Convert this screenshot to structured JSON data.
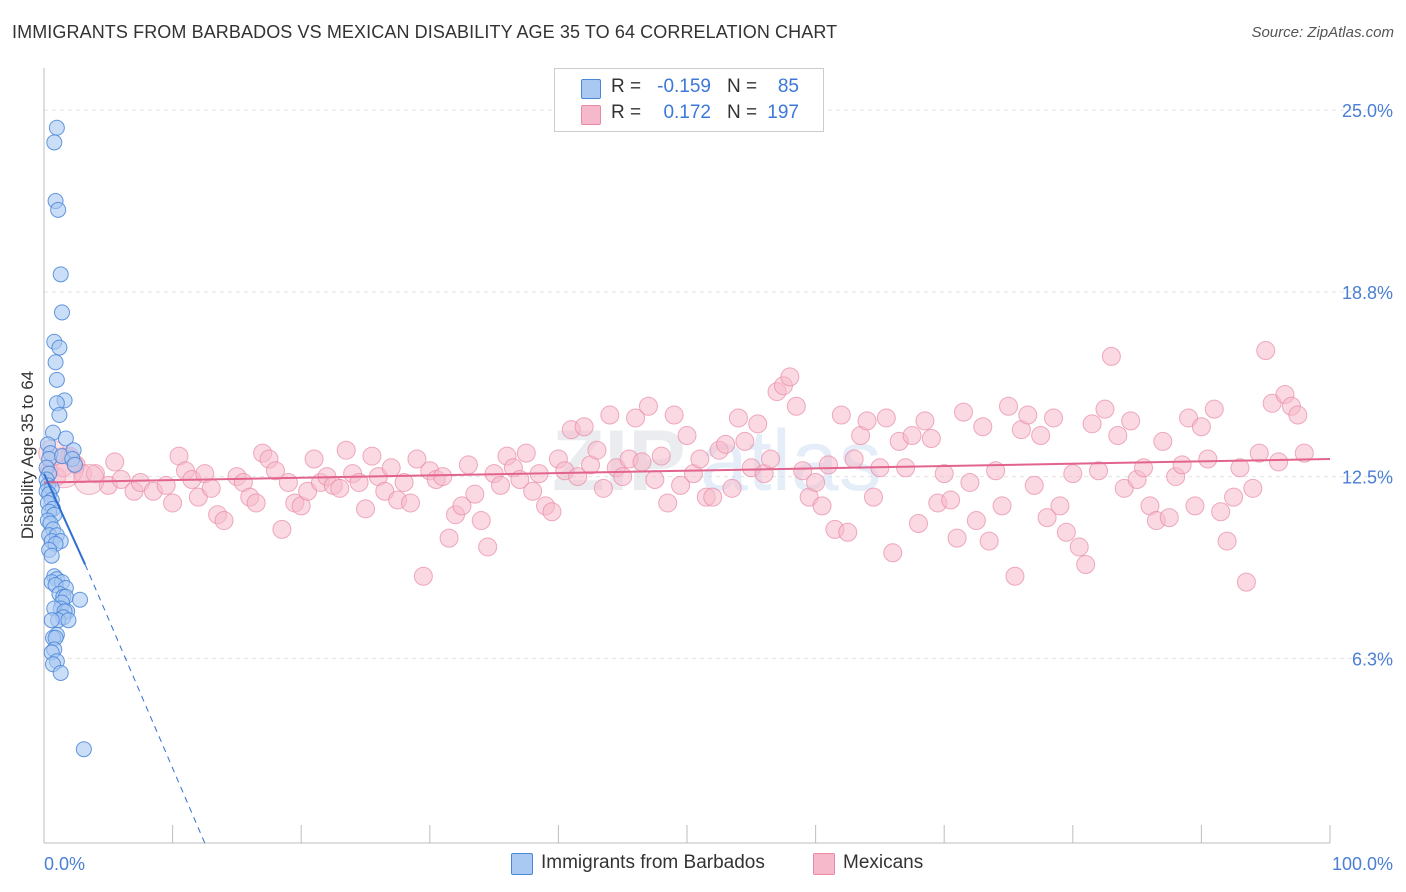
{
  "title": "IMMIGRANTS FROM BARBADOS VS MEXICAN DISABILITY AGE 35 TO 64 CORRELATION CHART",
  "source": "Source: ZipAtlas.com",
  "watermark": {
    "zip": "ZIP",
    "atlas": "atlas"
  },
  "legend": {
    "rows": [
      {
        "r_label": "R =",
        "r_value": "-0.159",
        "n_label": "N =",
        "n_value": "85"
      },
      {
        "r_label": "R =",
        "r_value": "0.172",
        "n_label": "N =",
        "n_value": "197"
      }
    ]
  },
  "bottom_legend": [
    {
      "label": "Immigrants from Barbados"
    },
    {
      "label": "Mexicans"
    }
  ],
  "colors": {
    "barbados_fill": "#a9c8f2",
    "barbados_stroke": "#4a86d8",
    "barbados_line": "#2f6fd0",
    "mexicans_fill": "#f6b9cb",
    "mexicans_stroke": "#e889a6",
    "mexicans_line": "#e2648d",
    "tick_text": "#4a7fd4",
    "grid": "#e3e3e3"
  },
  "chart_data": {
    "type": "scatter",
    "title": "IMMIGRANTS FROM BARBADOS VS MEXICAN DISABILITY AGE 35 TO 64 CORRELATION CHART",
    "xlabel": "",
    "ylabel": "Disability Age 35 to 64",
    "xlim": [
      0,
      100
    ],
    "ylim": [
      0,
      26.2
    ],
    "x_tick_labels": [
      "0.0%",
      "100.0%"
    ],
    "y_ticks": [
      6.3,
      12.5,
      18.8,
      25.0
    ],
    "y_tick_labels": [
      "6.3%",
      "12.5%",
      "18.8%",
      "25.0%"
    ],
    "grid": true,
    "legend_position": "top-center",
    "series": [
      {
        "name": "Immigrants from Barbados",
        "R": -0.159,
        "N": 85,
        "trend": {
          "x0": 0.0,
          "y0": 12.6,
          "x1": 3.2,
          "y1": 9.5,
          "dashed_to_x": 12.5,
          "dashed_to_y": 0
        },
        "points": [
          [
            1.0,
            24.4
          ],
          [
            0.8,
            23.9
          ],
          [
            0.9,
            21.9
          ],
          [
            1.1,
            21.6
          ],
          [
            1.3,
            19.4
          ],
          [
            1.4,
            18.1
          ],
          [
            0.8,
            17.1
          ],
          [
            1.2,
            16.9
          ],
          [
            0.9,
            16.4
          ],
          [
            1.0,
            15.8
          ],
          [
            1.6,
            15.1
          ],
          [
            1.0,
            15.0
          ],
          [
            1.2,
            14.6
          ],
          [
            0.7,
            14.0
          ],
          [
            1.7,
            13.8
          ],
          [
            0.3,
            13.6
          ],
          [
            0.5,
            13.3
          ],
          [
            0.4,
            13.1
          ],
          [
            1.4,
            13.2
          ],
          [
            2.3,
            13.4
          ],
          [
            2.2,
            13.1
          ],
          [
            2.4,
            12.9
          ],
          [
            0.2,
            12.8
          ],
          [
            0.4,
            12.6
          ],
          [
            0.2,
            12.4
          ],
          [
            0.3,
            12.2
          ],
          [
            0.6,
            12.1
          ],
          [
            0.2,
            12.0
          ],
          [
            0.4,
            11.9
          ],
          [
            0.6,
            11.7
          ],
          [
            0.3,
            11.6
          ],
          [
            0.7,
            11.4
          ],
          [
            0.4,
            11.3
          ],
          [
            0.8,
            11.2
          ],
          [
            0.3,
            11.0
          ],
          [
            0.5,
            10.9
          ],
          [
            0.7,
            10.7
          ],
          [
            0.4,
            10.5
          ],
          [
            1.0,
            10.5
          ],
          [
            0.6,
            10.3
          ],
          [
            1.3,
            10.3
          ],
          [
            0.9,
            10.2
          ],
          [
            0.4,
            10.0
          ],
          [
            0.6,
            9.8
          ],
          [
            0.8,
            9.1
          ],
          [
            1.0,
            9.0
          ],
          [
            0.6,
            8.9
          ],
          [
            1.4,
            8.9
          ],
          [
            0.9,
            8.8
          ],
          [
            1.7,
            8.7
          ],
          [
            1.2,
            8.5
          ],
          [
            1.5,
            8.4
          ],
          [
            1.7,
            8.4
          ],
          [
            2.8,
            8.3
          ],
          [
            1.4,
            8.2
          ],
          [
            1.3,
            8.0
          ],
          [
            0.8,
            8.0
          ],
          [
            1.8,
            7.9
          ],
          [
            1.6,
            7.9
          ],
          [
            1.5,
            7.7
          ],
          [
            1.1,
            7.6
          ],
          [
            1.9,
            7.6
          ],
          [
            0.6,
            7.6
          ],
          [
            1.0,
            7.1
          ],
          [
            0.7,
            7.0
          ],
          [
            0.9,
            7.0
          ],
          [
            0.8,
            6.6
          ],
          [
            0.6,
            6.5
          ],
          [
            1.0,
            6.2
          ],
          [
            0.7,
            6.1
          ],
          [
            1.3,
            5.8
          ],
          [
            3.1,
            3.2
          ]
        ]
      },
      {
        "name": "Mexicans",
        "R": 0.172,
        "N": 197,
        "trend": {
          "x0": 0.0,
          "y0": 12.3,
          "x1": 100.0,
          "y1": 13.1
        },
        "points": [
          [
            0.4,
            12.7
          ],
          [
            1.0,
            12.5
          ],
          [
            1.5,
            12.8
          ],
          [
            2.0,
            13.2
          ],
          [
            2.5,
            12.9
          ],
          [
            3.0,
            12.6
          ],
          [
            4.0,
            12.6
          ],
          [
            5.0,
            12.2
          ],
          [
            5.5,
            13.0
          ],
          [
            6.0,
            12.4
          ],
          [
            7.0,
            12.0
          ],
          [
            7.5,
            12.3
          ],
          [
            8.5,
            12.0
          ],
          [
            9.5,
            12.2
          ],
          [
            10.0,
            11.6
          ],
          [
            10.5,
            13.2
          ],
          [
            11.0,
            12.7
          ],
          [
            11.5,
            12.4
          ],
          [
            12.0,
            11.8
          ],
          [
            12.5,
            12.6
          ],
          [
            13.0,
            12.1
          ],
          [
            13.5,
            11.2
          ],
          [
            14.0,
            11.0
          ],
          [
            15.0,
            12.5
          ],
          [
            15.5,
            12.3
          ],
          [
            16.0,
            11.8
          ],
          [
            16.5,
            11.6
          ],
          [
            17.0,
            13.3
          ],
          [
            17.5,
            13.1
          ],
          [
            18.0,
            12.7
          ],
          [
            18.5,
            10.7
          ],
          [
            19.0,
            12.3
          ],
          [
            19.5,
            11.6
          ],
          [
            20.0,
            11.5
          ],
          [
            20.5,
            12.0
          ],
          [
            21.0,
            13.1
          ],
          [
            21.5,
            12.3
          ],
          [
            22.0,
            12.5
          ],
          [
            22.5,
            12.2
          ],
          [
            23.0,
            12.1
          ],
          [
            23.5,
            13.4
          ],
          [
            24.0,
            12.6
          ],
          [
            24.5,
            12.3
          ],
          [
            25.0,
            11.4
          ],
          [
            25.5,
            13.2
          ],
          [
            26.0,
            12.5
          ],
          [
            26.5,
            12.0
          ],
          [
            27.0,
            12.8
          ],
          [
            27.5,
            11.7
          ],
          [
            28.0,
            12.3
          ],
          [
            28.5,
            11.6
          ],
          [
            29.0,
            13.1
          ],
          [
            29.5,
            9.1
          ],
          [
            30.0,
            12.7
          ],
          [
            30.5,
            12.4
          ],
          [
            31.0,
            12.5
          ],
          [
            31.5,
            10.4
          ],
          [
            32.0,
            11.2
          ],
          [
            32.5,
            11.5
          ],
          [
            33.0,
            12.9
          ],
          [
            33.5,
            11.9
          ],
          [
            34.0,
            11.0
          ],
          [
            34.5,
            10.1
          ],
          [
            35.0,
            12.6
          ],
          [
            35.5,
            12.2
          ],
          [
            36.0,
            13.2
          ],
          [
            36.5,
            12.8
          ],
          [
            37.0,
            12.4
          ],
          [
            37.5,
            13.3
          ],
          [
            38.0,
            12.0
          ],
          [
            38.5,
            12.6
          ],
          [
            39.0,
            11.5
          ],
          [
            39.5,
            11.3
          ],
          [
            40.0,
            13.1
          ],
          [
            40.5,
            12.7
          ],
          [
            41.0,
            14.1
          ],
          [
            41.5,
            12.5
          ],
          [
            42.0,
            14.2
          ],
          [
            42.5,
            12.9
          ],
          [
            43.0,
            13.4
          ],
          [
            43.5,
            12.1
          ],
          [
            44.0,
            14.6
          ],
          [
            44.5,
            12.8
          ],
          [
            45.0,
            12.5
          ],
          [
            45.5,
            13.1
          ],
          [
            46.0,
            14.5
          ],
          [
            46.5,
            13.0
          ],
          [
            47.0,
            14.9
          ],
          [
            47.5,
            12.4
          ],
          [
            48.0,
            13.2
          ],
          [
            48.5,
            11.6
          ],
          [
            49.0,
            14.6
          ],
          [
            49.5,
            12.2
          ],
          [
            50.0,
            13.9
          ],
          [
            50.5,
            12.6
          ],
          [
            51.0,
            13.1
          ],
          [
            51.5,
            11.8
          ],
          [
            52.0,
            11.8
          ],
          [
            52.5,
            13.4
          ],
          [
            53.0,
            13.6
          ],
          [
            53.5,
            12.1
          ],
          [
            54.0,
            14.5
          ],
          [
            54.5,
            13.7
          ],
          [
            55.0,
            12.8
          ],
          [
            55.5,
            14.3
          ],
          [
            56.0,
            12.6
          ],
          [
            56.5,
            13.1
          ],
          [
            57.0,
            15.4
          ],
          [
            57.5,
            15.6
          ],
          [
            58.0,
            15.9
          ],
          [
            58.5,
            14.9
          ],
          [
            59.0,
            12.7
          ],
          [
            59.5,
            11.8
          ],
          [
            60.0,
            12.3
          ],
          [
            60.5,
            11.5
          ],
          [
            61.0,
            12.9
          ],
          [
            61.5,
            10.7
          ],
          [
            62.0,
            14.6
          ],
          [
            62.5,
            10.6
          ],
          [
            63.0,
            13.1
          ],
          [
            63.5,
            13.9
          ],
          [
            64.0,
            14.4
          ],
          [
            64.5,
            11.8
          ],
          [
            65.0,
            12.8
          ],
          [
            65.5,
            14.5
          ],
          [
            66.0,
            9.9
          ],
          [
            66.5,
            13.7
          ],
          [
            67.0,
            12.8
          ],
          [
            67.5,
            13.9
          ],
          [
            68.0,
            10.9
          ],
          [
            68.5,
            14.4
          ],
          [
            69.0,
            13.8
          ],
          [
            69.5,
            11.6
          ],
          [
            70.0,
            12.6
          ],
          [
            70.5,
            11.7
          ],
          [
            71.0,
            10.4
          ],
          [
            71.5,
            14.7
          ],
          [
            72.0,
            12.3
          ],
          [
            72.5,
            11.0
          ],
          [
            73.0,
            14.2
          ],
          [
            73.5,
            10.3
          ],
          [
            74.0,
            12.7
          ],
          [
            74.5,
            11.5
          ],
          [
            75.0,
            14.9
          ],
          [
            75.5,
            9.1
          ],
          [
            76.0,
            14.1
          ],
          [
            76.5,
            14.6
          ],
          [
            77.0,
            12.2
          ],
          [
            77.5,
            13.9
          ],
          [
            78.0,
            11.1
          ],
          [
            78.5,
            14.5
          ],
          [
            79.0,
            11.5
          ],
          [
            79.5,
            10.6
          ],
          [
            80.0,
            12.6
          ],
          [
            80.5,
            10.1
          ],
          [
            81.0,
            9.5
          ],
          [
            81.5,
            14.3
          ],
          [
            82.0,
            12.7
          ],
          [
            82.5,
            14.8
          ],
          [
            83.0,
            16.6
          ],
          [
            83.5,
            13.9
          ],
          [
            84.0,
            12.1
          ],
          [
            84.5,
            14.4
          ],
          [
            85.0,
            12.4
          ],
          [
            85.5,
            12.8
          ],
          [
            86.0,
            11.5
          ],
          [
            86.5,
            11.0
          ],
          [
            87.0,
            13.7
          ],
          [
            87.5,
            11.1
          ],
          [
            88.0,
            12.5
          ],
          [
            88.5,
            12.9
          ],
          [
            89.0,
            14.5
          ],
          [
            89.5,
            11.5
          ],
          [
            90.0,
            14.2
          ],
          [
            90.5,
            13.1
          ],
          [
            91.0,
            14.8
          ],
          [
            91.5,
            11.3
          ],
          [
            92.0,
            10.3
          ],
          [
            92.5,
            11.8
          ],
          [
            93.0,
            12.8
          ],
          [
            93.5,
            8.9
          ],
          [
            94.0,
            12.1
          ],
          [
            94.5,
            13.3
          ],
          [
            95.0,
            16.8
          ],
          [
            95.5,
            15.0
          ],
          [
            96.0,
            13.0
          ],
          [
            96.5,
            15.3
          ],
          [
            97.0,
            14.9
          ],
          [
            97.5,
            14.6
          ],
          [
            98.0,
            13.3
          ]
        ]
      }
    ]
  }
}
